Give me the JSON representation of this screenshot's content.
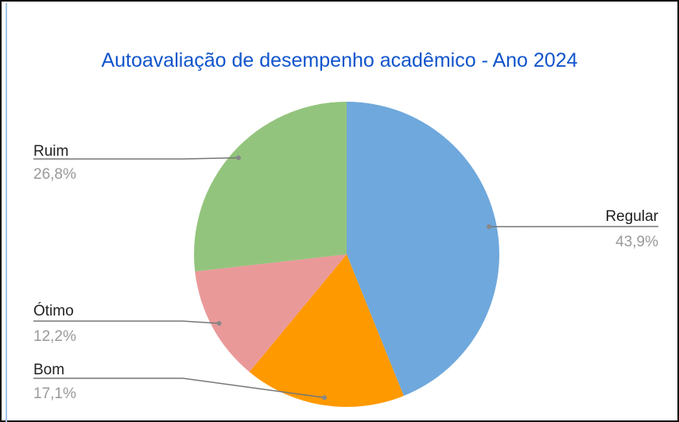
{
  "chart_data": {
    "type": "pie",
    "title": "Autoavaliação de desempenho acadêmico - Ano 2024",
    "categories": [
      "Regular",
      "Bom",
      "Ótimo",
      "Ruim"
    ],
    "values": [
      43.9,
      17.1,
      12.2,
      26.8
    ],
    "value_labels": [
      "43,9%",
      "17,1%",
      "12,2%",
      "26,8%"
    ],
    "colors": [
      "#6fa8dc",
      "#ff9900",
      "#ea9999",
      "#93c47d"
    ]
  }
}
